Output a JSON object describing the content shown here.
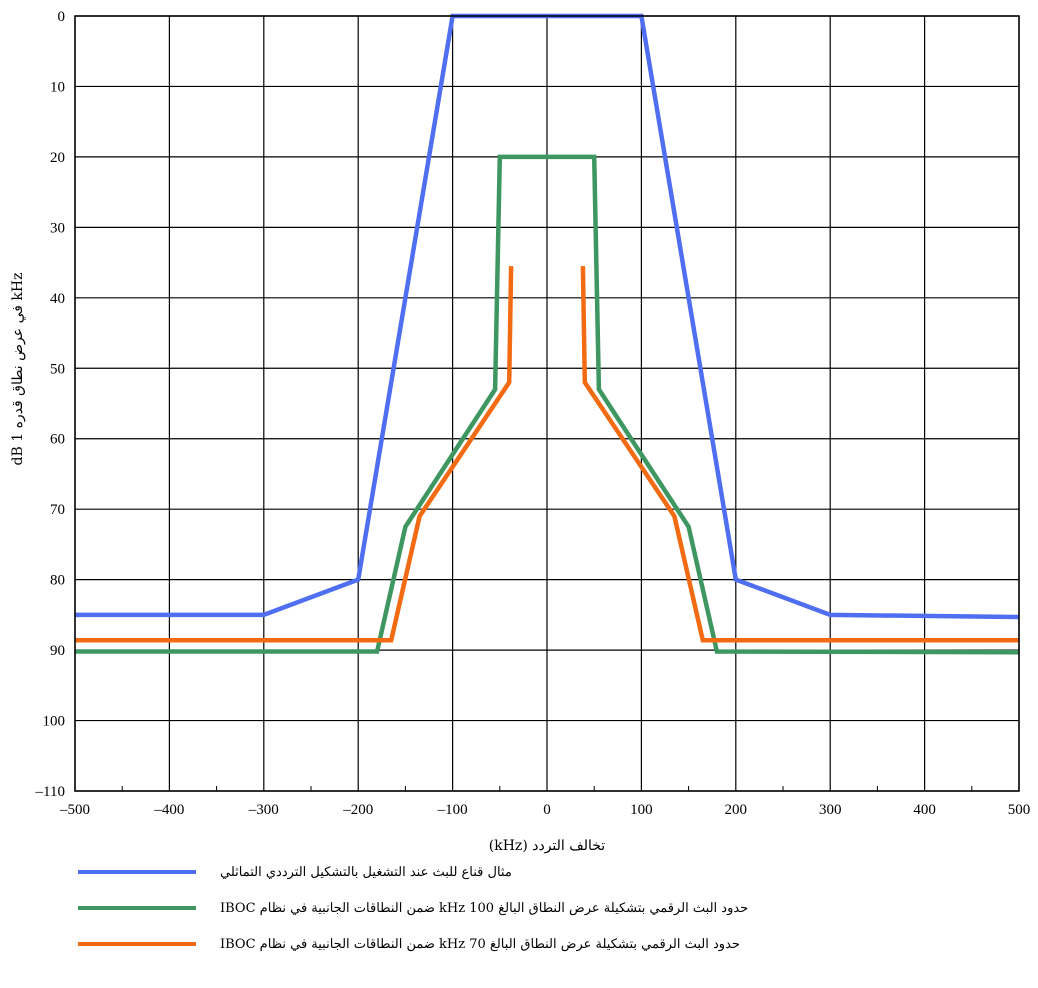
{
  "chart_data": {
    "type": "line",
    "title": "",
    "xlabel": "تخالف التردد (kHz)",
    "ylabel": "dB في عرض نطاق قدره 1 kHz",
    "xlim": [
      -500,
      500
    ],
    "ylim": [
      -110,
      0
    ],
    "y_inverted": true,
    "x_ticks": [
      -500,
      -400,
      -300,
      -200,
      -100,
      0,
      100,
      200,
      300,
      400,
      500
    ],
    "x_tick_labels": [
      "–500",
      "–400",
      "–300",
      "–200",
      "–100",
      "0",
      "100",
      "200",
      "300",
      "400",
      "500"
    ],
    "y_ticks": [
      0,
      -10,
      -20,
      -30,
      -40,
      -50,
      -60,
      -70,
      -80,
      -90,
      -100,
      -110
    ],
    "y_tick_labels": [
      "0",
      "10",
      "20",
      "30",
      "40",
      "50",
      "60",
      "70",
      "80",
      "90",
      "100",
      "–110"
    ],
    "grid": true,
    "legend_position": "bottom",
    "series": [
      {
        "name": "مثال قناع للبث عند التشغيل بالتشكيل الترددي التماثلي",
        "color": "#4f6ff0",
        "points": [
          [
            -500,
            -85
          ],
          [
            -300,
            -85
          ],
          [
            -200,
            -80
          ],
          [
            -100,
            0
          ],
          [
            100,
            0
          ],
          [
            200,
            -80
          ],
          [
            300,
            -85
          ],
          [
            500,
            -85.3
          ]
        ]
      },
      {
        "name": "حدود البث الرقمي بتشكيلة عرض النطاق البالغ 100 kHz ضمن النطاقات الجانبية في نظام IBOC",
        "color": "#3e9660",
        "points": [
          [
            -500,
            -90.2
          ],
          [
            -180,
            -90.2
          ],
          [
            -150,
            -72.5
          ],
          [
            -55,
            -53
          ],
          [
            -50,
            -20
          ],
          [
            50,
            -20
          ],
          [
            55,
            -53
          ],
          [
            150,
            -72.5
          ],
          [
            180,
            -90.2
          ],
          [
            500,
            -90.3
          ]
        ]
      },
      {
        "name": "حدود البث الرقمي بتشكيلة عرض النطاق البالغ 70 kHz ضمن النطاقات الجانبية في نظام IBOC",
        "color": "#f26b12",
        "points_left": [
          [
            -500,
            -88.6
          ],
          [
            -165,
            -88.6
          ],
          [
            -135,
            -71
          ],
          [
            -40,
            -52
          ],
          [
            -38,
            -35.5
          ]
        ],
        "points_right": [
          [
            38,
            -35.5
          ],
          [
            40,
            -52
          ],
          [
            135,
            -71
          ],
          [
            165,
            -88.6
          ],
          [
            500,
            -88.6
          ]
        ]
      }
    ]
  }
}
